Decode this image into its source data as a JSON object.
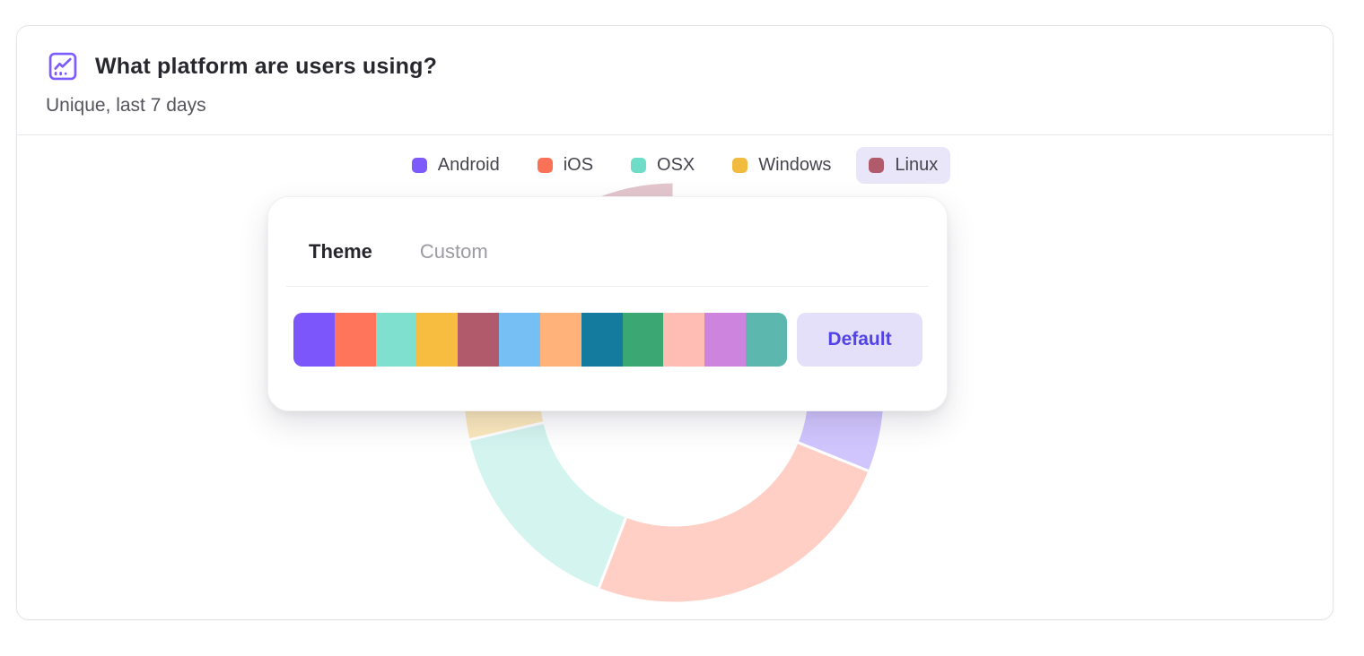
{
  "card": {
    "title": "What platform are users using?",
    "subtitle": "Unique, last 7 days"
  },
  "legend": {
    "highlight_bg": "#EAE6F9",
    "items": [
      {
        "label": "Android",
        "color": "#7C5AFC",
        "highlighted": false
      },
      {
        "label": "iOS",
        "color": "#F97258",
        "highlighted": false
      },
      {
        "label": "OSX",
        "color": "#6FDCC8",
        "highlighted": false
      },
      {
        "label": "Windows",
        "color": "#F0BB3F",
        "highlighted": false
      },
      {
        "label": "Linux",
        "color": "#B05A6C",
        "highlighted": true
      }
    ]
  },
  "popover": {
    "tabs": [
      {
        "label": "Theme",
        "active": true
      },
      {
        "label": "Custom",
        "active": false
      }
    ],
    "palette": [
      "#7C55FB",
      "#FF755C",
      "#80E0D0",
      "#F6BD40",
      "#B05A6C",
      "#75BFF5",
      "#FFB27A",
      "#147B9F",
      "#3BA873",
      "#FFBDB3",
      "#CC84DE",
      "#5CB8AF"
    ],
    "default_button": {
      "label": "Default",
      "bg": "#E5E0FA",
      "text_color": "#5243E8"
    }
  },
  "chart_data": {
    "type": "donut",
    "title": "What platform are users using?",
    "subtitle": "Unique, last 7 days",
    "legend_position": "top",
    "state": "faded-under-popover",
    "fade_opacity": 0.35,
    "outer_radius_px": 235,
    "inner_radius_px": 148,
    "series": [
      {
        "label": "Android",
        "color": "#7C5AFC",
        "start_deg": 21,
        "end_deg": 112,
        "percent_est": 25.3
      },
      {
        "label": "iOS",
        "color": "#FF755C",
        "start_deg": 112,
        "end_deg": 201,
        "percent_est": 24.7
      },
      {
        "label": "OSX",
        "color": "#80E0D0",
        "start_deg": 201,
        "end_deg": 257,
        "percent_est": 15.6
      },
      {
        "label": "Windows",
        "color": "#F6BD40",
        "start_deg": 257,
        "end_deg": 335.5,
        "percent_est": 21.8
      },
      {
        "label": "Linux",
        "color": "#B05A6C",
        "start_deg": 335.5,
        "end_deg": 360,
        "percent_est": 12.6
      }
    ]
  }
}
